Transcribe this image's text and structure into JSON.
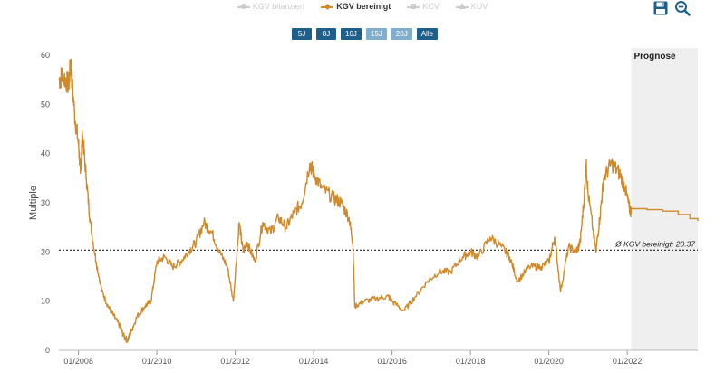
{
  "legend": {
    "items": [
      {
        "label": "KGV bilanziert",
        "marker": "circle",
        "active": false
      },
      {
        "label": "KGV bereinigt",
        "marker": "diamond",
        "active": true
      },
      {
        "label": "KCV",
        "marker": "square",
        "active": false
      },
      {
        "label": "KUV",
        "marker": "triangle",
        "active": false
      }
    ]
  },
  "toolbar": {
    "save_icon": "save-icon",
    "zoom_out_icon": "zoom-out-icon"
  },
  "range_buttons": [
    {
      "label": "5J"
    },
    {
      "label": "8J"
    },
    {
      "label": "10J"
    },
    {
      "label": "15J",
      "dim": true
    },
    {
      "label": "20J",
      "dim": true
    },
    {
      "label": "Alle"
    }
  ],
  "colors": {
    "series": "#d08a2a",
    "forecast_band": "#efefef",
    "button": "#1e5f8c"
  },
  "chart_data": {
    "type": "line",
    "title": "",
    "xlabel": "",
    "ylabel": "Multiple",
    "ylim": [
      0,
      60
    ],
    "xlim": [
      2007.5,
      2023.8
    ],
    "yticks": [
      0,
      10,
      20,
      30,
      40,
      50,
      60
    ],
    "xticks": [
      {
        "value": 2008.0,
        "label": "01/2008"
      },
      {
        "value": 2010.0,
        "label": "01/2010"
      },
      {
        "value": 2012.0,
        "label": "01/2012"
      },
      {
        "value": 2014.0,
        "label": "01/2014"
      },
      {
        "value": 2016.0,
        "label": "01/2016"
      },
      {
        "value": 2018.0,
        "label": "01/2018"
      },
      {
        "value": 2020.0,
        "label": "01/2020"
      },
      {
        "value": 2022.0,
        "label": "01/2022"
      }
    ],
    "grid": false,
    "legend_position": "top-center",
    "forecast": {
      "start": 2022.1,
      "label": "Prognose"
    },
    "average": {
      "value": 20.37,
      "label": "Ø KGV bereinigt: 20.37"
    },
    "series": [
      {
        "name": "KGV bereinigt",
        "x": [
          2007.5,
          2007.6,
          2007.75,
          2007.8,
          2007.9,
          2008.0,
          2008.05,
          2008.1,
          2008.2,
          2008.3,
          2008.45,
          2008.6,
          2008.75,
          2008.9,
          2009.05,
          2009.15,
          2009.25,
          2009.35,
          2009.5,
          2009.7,
          2009.85,
          2010.0,
          2010.2,
          2010.4,
          2010.6,
          2010.8,
          2011.0,
          2011.2,
          2011.4,
          2011.6,
          2011.8,
          2011.95,
          2012.1,
          2012.2,
          2012.3,
          2012.5,
          2012.7,
          2012.9,
          2013.1,
          2013.3,
          2013.5,
          2013.7,
          2013.9,
          2014.0,
          2014.2,
          2014.5,
          2014.7,
          2014.9,
          2015.0,
          2015.05,
          2015.3,
          2015.6,
          2015.9,
          2016.0,
          2016.3,
          2016.6,
          2016.9,
          2017.2,
          2017.5,
          2017.8,
          2018.0,
          2018.2,
          2018.5,
          2018.8,
          2019.0,
          2019.2,
          2019.5,
          2019.8,
          2020.0,
          2020.15,
          2020.3,
          2020.5,
          2020.7,
          2020.8,
          2020.9,
          2020.95,
          2021.0,
          2021.2,
          2021.3,
          2021.4,
          2021.6,
          2021.8,
          2021.95,
          2022.05,
          2022.1
        ],
        "values": [
          55,
          56,
          54,
          58.5,
          48,
          42,
          36,
          44,
          35,
          26,
          18,
          12,
          9,
          7,
          5,
          3,
          2,
          4,
          7,
          9,
          10,
          18,
          19,
          17,
          18,
          20,
          22,
          26,
          24,
          20,
          17,
          10,
          26,
          20,
          22,
          18,
          26,
          24,
          27,
          25,
          28,
          30,
          38,
          36,
          33,
          31,
          30,
          27,
          22,
          9,
          10,
          10.5,
          11,
          10,
          8,
          11,
          14,
          16,
          16,
          19,
          20,
          19,
          23,
          21,
          19,
          14,
          17,
          17,
          18,
          23,
          12,
          21,
          20,
          22,
          31,
          38,
          32,
          20,
          27,
          35,
          38,
          36,
          33,
          29,
          28
        ]
      },
      {
        "name": "Prognose",
        "x": [
          2022.1,
          2022.5,
          2022.9,
          2023.3,
          2023.6,
          2023.8
        ],
        "values": [
          28.8,
          28.6,
          28.3,
          27.6,
          26.8,
          26.3
        ]
      }
    ]
  }
}
